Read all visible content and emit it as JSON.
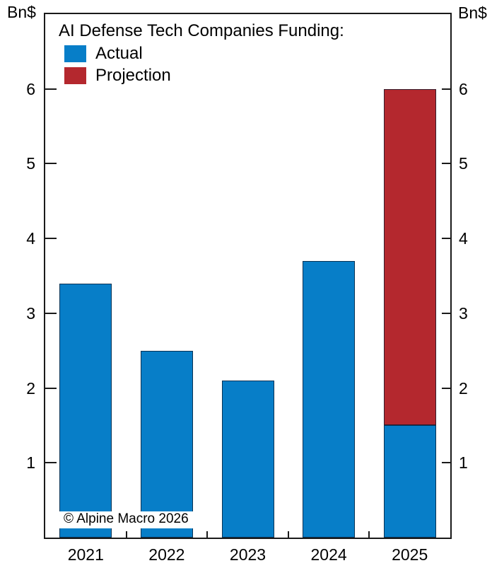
{
  "chart_data": {
    "type": "bar",
    "stacked": true,
    "title": "AI Defense Tech Companies Funding:",
    "categories": [
      "2021",
      "2022",
      "2023",
      "2024",
      "2025"
    ],
    "series": [
      {
        "name": "Actual",
        "color": "#077ec8",
        "values": [
          3.4,
          2.5,
          2.1,
          3.7,
          1.5
        ]
      },
      {
        "name": "Projection",
        "color": "#b4282e",
        "values": [
          0,
          0,
          0,
          0,
          4.5
        ]
      }
    ],
    "ylabel": "Bn$",
    "ylabel_left": "Bn$",
    "ylabel_right": "Bn$",
    "ylim": [
      0,
      7
    ],
    "yticks": [
      1,
      2,
      3,
      4,
      5,
      6
    ],
    "grid": false,
    "legend_position": "top-left",
    "annotation": "© Alpine Macro 2026",
    "frame_color": "#1a1a1a"
  }
}
